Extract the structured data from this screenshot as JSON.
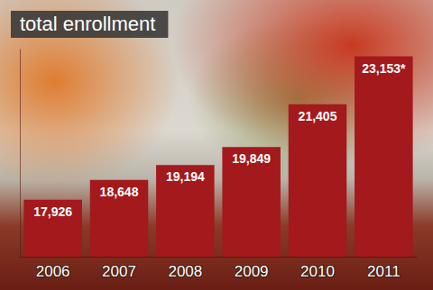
{
  "chart_data": {
    "type": "bar",
    "title": "total enrollment",
    "categories": [
      "2006",
      "2007",
      "2008",
      "2009",
      "2010",
      "2011"
    ],
    "values": [
      17926,
      18648,
      19194,
      19849,
      21405,
      23153
    ],
    "value_labels": [
      "17,926",
      "18,648",
      "19,194",
      "19,849",
      "21,405",
      "23,153*"
    ],
    "color": "#a3191c",
    "ylim": [
      15850,
      23400
    ],
    "grid": false,
    "data_labels": true,
    "tick_labels": "x"
  }
}
